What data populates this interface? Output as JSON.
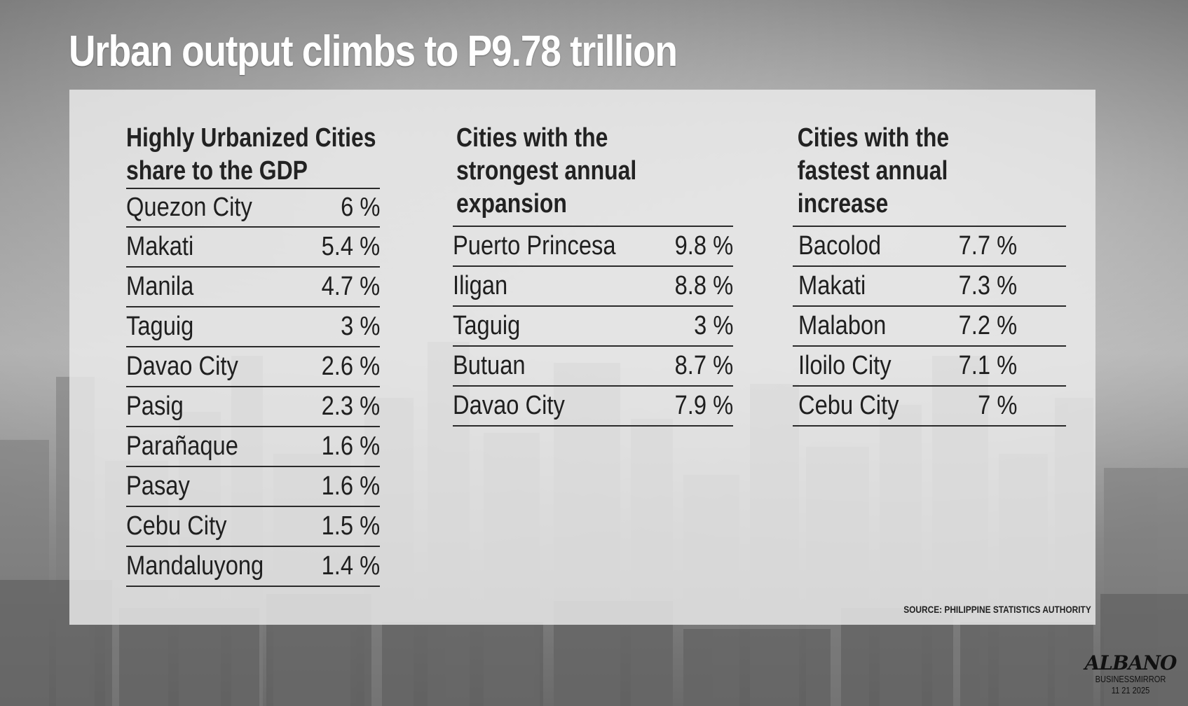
{
  "headline": "Urban output climbs to P9.78 trillion",
  "columns": [
    {
      "heading_lines": [
        "Highly Urbanized Cities",
        "share to the  GDP"
      ],
      "rows": [
        {
          "name": "Quezon City",
          "value": "6 %"
        },
        {
          "name": "Makati",
          "value": "5.4 %"
        },
        {
          "name": "Manila",
          "value": "4.7 %"
        },
        {
          "name": "Taguig",
          "value": "3 %"
        },
        {
          "name": "Davao City",
          "value": "2.6 %"
        },
        {
          "name": "Pasig",
          "value": "2.3 %"
        },
        {
          "name": "Parañaque",
          "value": "1.6 %"
        },
        {
          "name": "Pasay",
          "value": "1.6 %"
        },
        {
          "name": "Cebu City",
          "value": "1.5 %"
        },
        {
          "name": "Mandaluyong",
          "value": "1.4 %"
        }
      ]
    },
    {
      "heading_lines": [
        "Cities with the",
        "strongest annual",
        "expansion"
      ],
      "rows": [
        {
          "name": "Puerto Princesa",
          "value": "9.8 %"
        },
        {
          "name": "Iligan",
          "value": "8.8 %"
        },
        {
          "name": "Taguig",
          "value": "3 %"
        },
        {
          "name": "Butuan",
          "value": "8.7 %"
        },
        {
          "name": "Davao City",
          "value": "7.9 %"
        }
      ]
    },
    {
      "heading_lines": [
        "Cities with the",
        "fastest annual",
        "increase"
      ],
      "rows": [
        {
          "name": "Bacolod",
          "value": "7.7 %"
        },
        {
          "name": "Makati",
          "value": "7.3 %"
        },
        {
          "name": "Malabon",
          "value": "7.2 %"
        },
        {
          "name": "Iloilo City",
          "value": "7.1 %"
        },
        {
          "name": "Cebu City",
          "value": "7 %"
        }
      ]
    }
  ],
  "source": "SOURCE: PHILIPPINE STATISTICS AUTHORITY",
  "credit": {
    "artist": "ALBANO",
    "publication": "BUSINESSMIRROR",
    "date": "11 21 2025"
  }
}
